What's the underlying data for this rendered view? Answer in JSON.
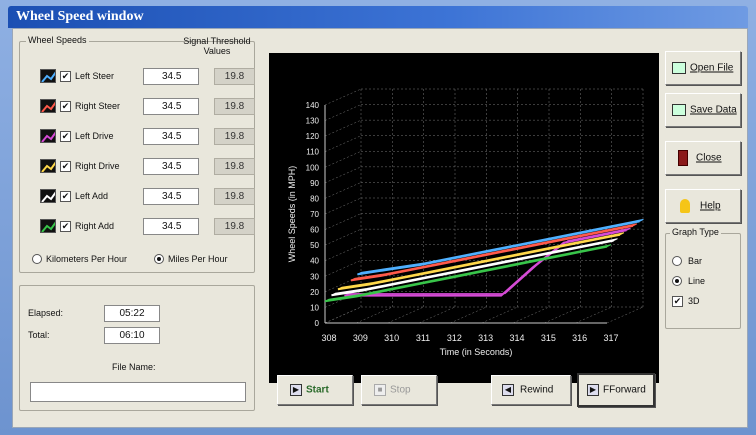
{
  "window": {
    "title": "Wheel Speed window"
  },
  "wheel_speeds": {
    "group_label": "Wheel Speeds",
    "threshold_header": "Signal Threshold Values",
    "rows": [
      {
        "label": "Left Steer",
        "value": "34.5",
        "threshold": "19.8",
        "checked": true,
        "color": "#4fb0ff"
      },
      {
        "label": "Right Steer",
        "value": "34.5",
        "threshold": "19.8",
        "checked": true,
        "color": "#ff5a4a"
      },
      {
        "label": "Left Drive",
        "value": "34.5",
        "threshold": "19.8",
        "checked": true,
        "color": "#d64bd6"
      },
      {
        "label": "Right Drive",
        "value": "34.5",
        "threshold": "19.8",
        "checked": true,
        "color": "#ffd84a"
      },
      {
        "label": "Left Add",
        "value": "34.5",
        "threshold": "19.8",
        "checked": true,
        "color": "#ffffff"
      },
      {
        "label": "Right Add",
        "value": "34.5",
        "threshold": "19.8",
        "checked": true,
        "color": "#39c54a"
      }
    ],
    "units": {
      "kph": "Kilometers Per Hour",
      "mph": "Miles Per Hour",
      "selected": "mph"
    }
  },
  "timing": {
    "elapsed_label": "Elapsed:",
    "elapsed_value": "05:22",
    "total_label": "Total:",
    "total_value": "06:10"
  },
  "file": {
    "label": "File Name:",
    "value": ""
  },
  "playback": {
    "start": "Start",
    "stop": "Stop",
    "rewind": "Rewind",
    "fforward": "FForward"
  },
  "actions": {
    "open": "Open File",
    "save": "Save Data",
    "close": "Close",
    "help": "Help"
  },
  "graph_type": {
    "label": "Graph Type",
    "bar": "Bar",
    "line": "Line",
    "d3": "3D",
    "selected": "line",
    "d3_checked": true
  },
  "chart_data": {
    "type": "line",
    "title": "",
    "xlabel": "Time (in Seconds)",
    "ylabel": "Wheel Speeds (in MPH)",
    "x": [
      308,
      309,
      310,
      311,
      312,
      313,
      314,
      315,
      316,
      317
    ],
    "ylim": [
      0,
      140
    ],
    "yticks": [
      0,
      10,
      20,
      30,
      40,
      50,
      60,
      70,
      80,
      90,
      100,
      110,
      120,
      130,
      140
    ],
    "grid": true,
    "is_3d": true,
    "series": [
      {
        "color": "#4fb0ff",
        "values": [
          22,
          25,
          28,
          32,
          36,
          40,
          44,
          48,
          52,
          56
        ]
      },
      {
        "color": "#ff5a4a",
        "values": [
          20,
          23,
          27,
          31,
          35,
          39,
          43,
          47,
          51,
          55
        ]
      },
      {
        "color": "#d64bd6",
        "values": [
          12,
          12,
          12,
          12,
          12,
          12,
          30,
          46,
          50,
          54
        ]
      },
      {
        "color": "#ffd84a",
        "values": [
          18,
          21,
          25,
          29,
          33,
          37,
          41,
          45,
          49,
          53
        ]
      },
      {
        "color": "#ffffff",
        "values": [
          16,
          19,
          23,
          27,
          31,
          35,
          39,
          43,
          47,
          51
        ]
      },
      {
        "color": "#39c54a",
        "values": [
          14,
          17,
          21,
          25,
          29,
          33,
          37,
          41,
          45,
          49
        ]
      }
    ]
  }
}
